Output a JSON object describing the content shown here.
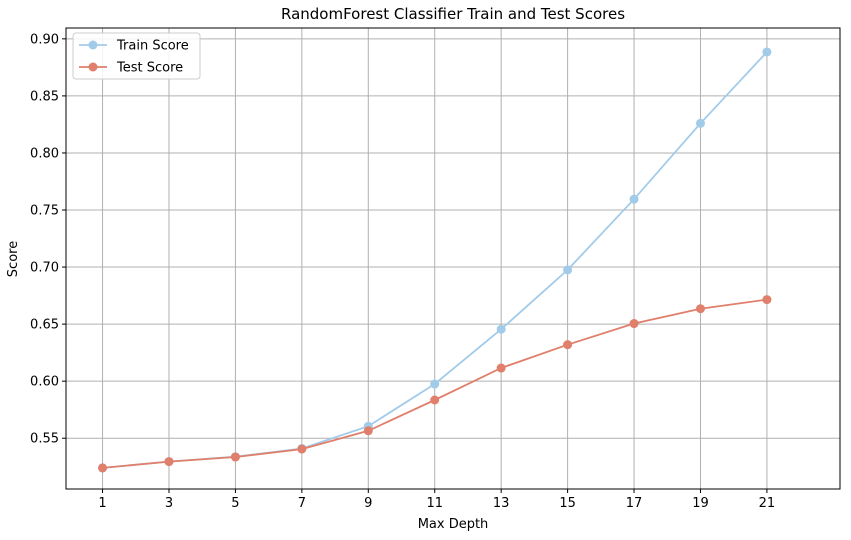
{
  "chart_data": {
    "type": "line",
    "title": "RandomForest Classifier Train and Test Scores",
    "xlabel": "Max Depth",
    "ylabel": "Score",
    "x": [
      1,
      3,
      5,
      7,
      9,
      11,
      13,
      15,
      17,
      19,
      21
    ],
    "xticks": [
      "1",
      "3",
      "5",
      "7",
      "9",
      "11",
      "13",
      "15",
      "17",
      "19",
      "21"
    ],
    "yticks": [
      "0.55",
      "0.60",
      "0.65",
      "0.70",
      "0.75",
      "0.80",
      "0.85",
      "0.90"
    ],
    "xlim": [
      -0.1,
      23.2
    ],
    "ylim": [
      0.5055,
      0.9095
    ],
    "grid": true,
    "legend_position": "top-left",
    "series": [
      {
        "name": "Train Score",
        "color": "#a2cbea",
        "values": [
          0.524,
          0.5295,
          0.5338,
          0.541,
          0.5605,
          0.5975,
          0.6455,
          0.6975,
          0.7595,
          0.826,
          0.8885
        ]
      },
      {
        "name": "Test Score",
        "color": "#e07f6b",
        "values": [
          0.524,
          0.5295,
          0.5335,
          0.5405,
          0.5565,
          0.5835,
          0.6115,
          0.632,
          0.6505,
          0.6635,
          0.6715
        ]
      }
    ]
  }
}
